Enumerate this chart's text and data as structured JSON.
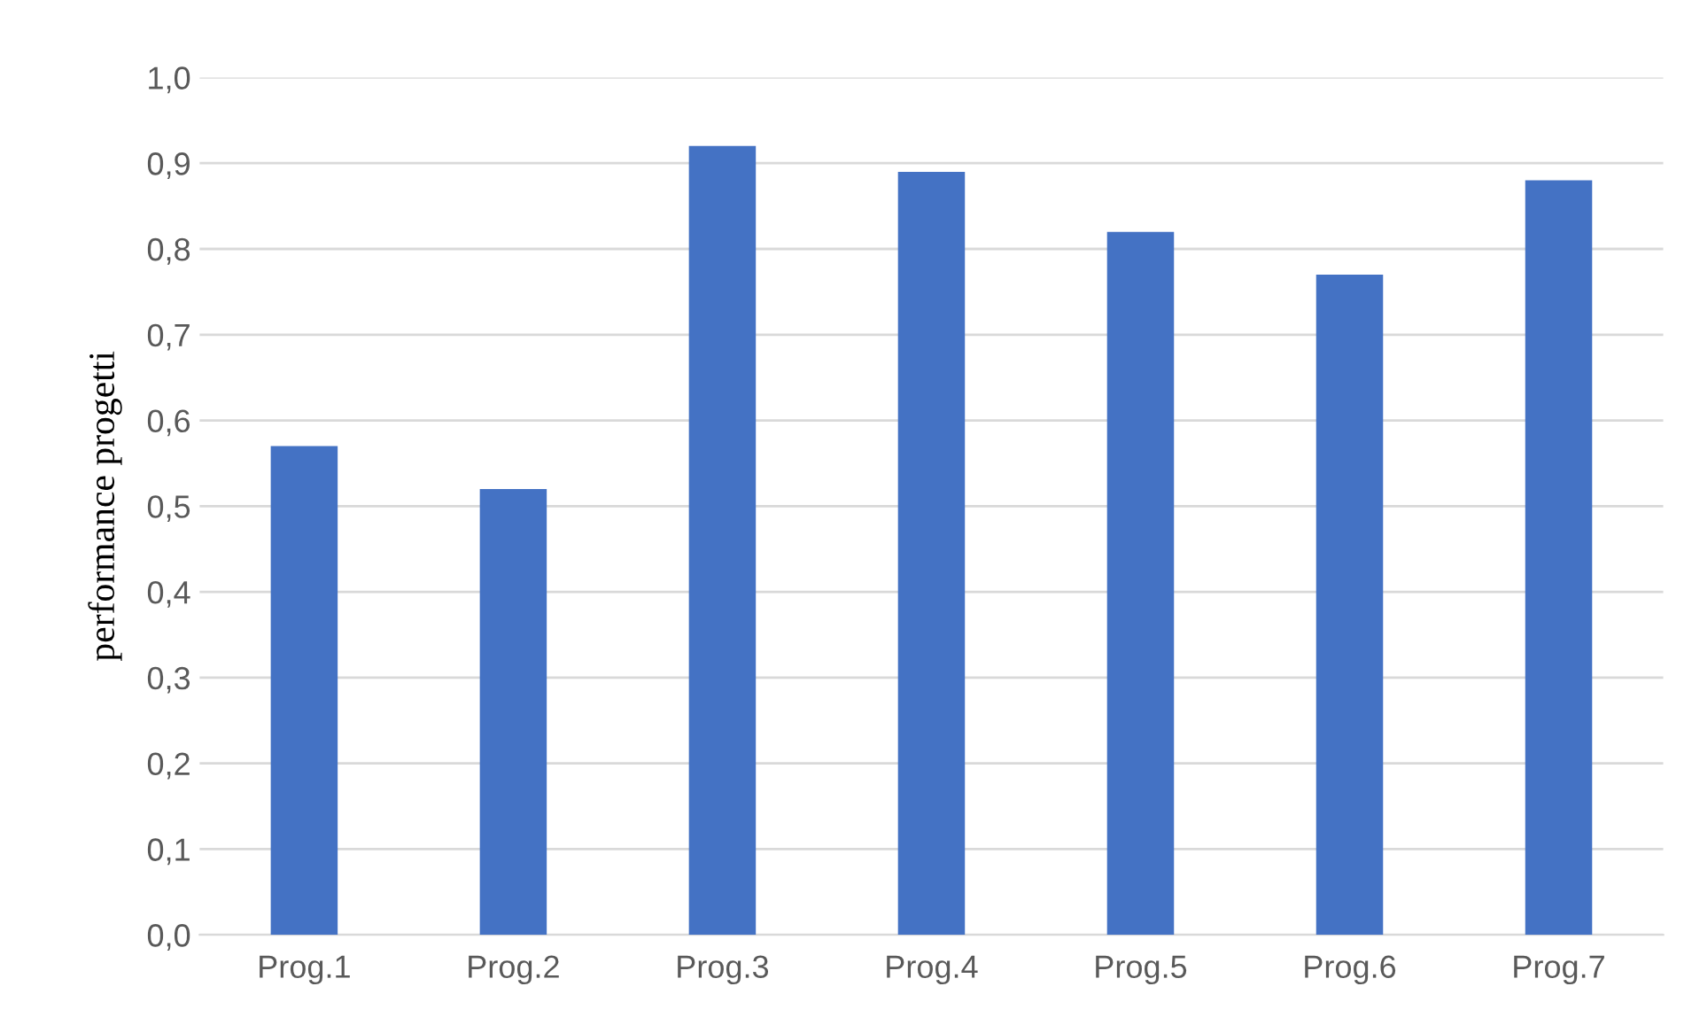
{
  "chart_data": {
    "type": "bar",
    "ylabel": "performance progetti",
    "categories": [
      "Prog.1",
      "Prog.2",
      "Prog.3",
      "Prog.4",
      "Prog.5",
      "Prog.6",
      "Prog.7"
    ],
    "values": [
      0.57,
      0.52,
      0.92,
      0.89,
      0.82,
      0.77,
      0.88
    ],
    "color": "#4472c4",
    "ylim": [
      0,
      1.0
    ],
    "yticks": [
      {
        "value": 0,
        "label": "0,0"
      },
      {
        "value": 0.1,
        "label": "0,1"
      },
      {
        "value": 0.2,
        "label": "0,2"
      },
      {
        "value": 0.3,
        "label": "0,3"
      },
      {
        "value": 0.4,
        "label": "0,4"
      },
      {
        "value": 0.5,
        "label": "0,5"
      },
      {
        "value": 0.6,
        "label": "0,6"
      },
      {
        "value": 0.7,
        "label": "0,7"
      },
      {
        "value": 0.8,
        "label": "0,8"
      },
      {
        "value": 0.9,
        "label": "0,9"
      },
      {
        "value": 1.0,
        "label": "1,0"
      }
    ],
    "grid": "y"
  }
}
